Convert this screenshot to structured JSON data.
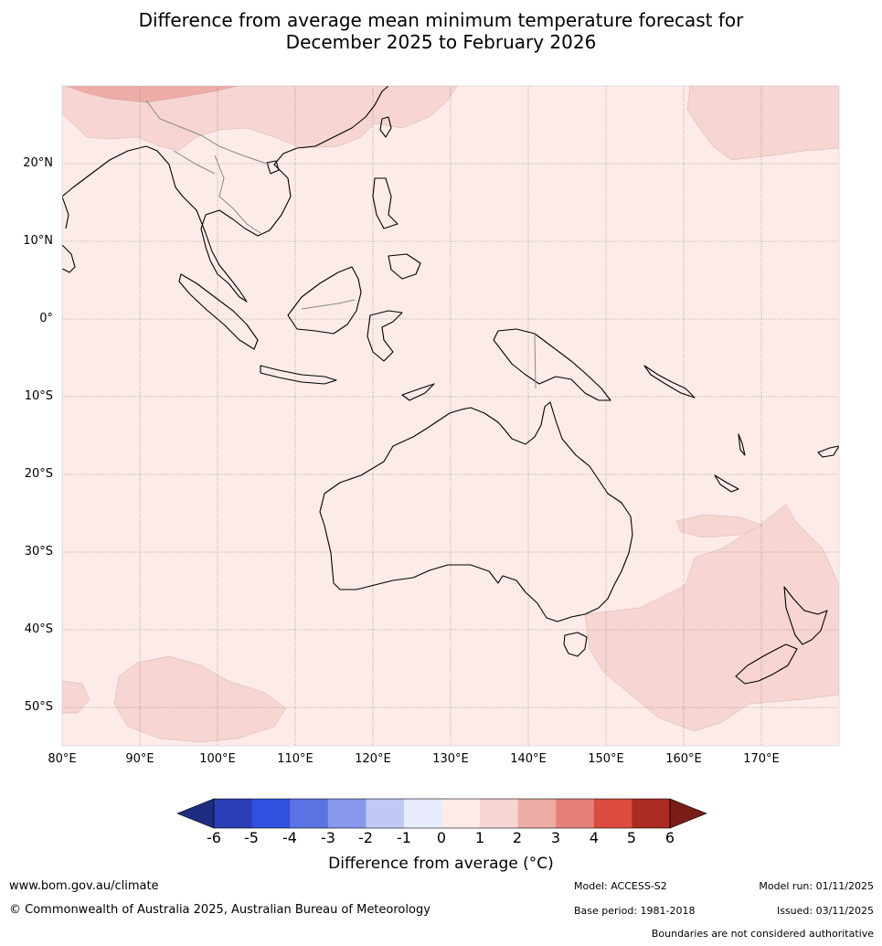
{
  "title": {
    "line1": "Difference from average mean minimum temperature forecast for",
    "line2": "December 2025 to February 2026"
  },
  "map": {
    "lon_range": [
      80,
      180
    ],
    "lat_range": [
      -55,
      30
    ],
    "lat_labels": [
      "20°N",
      "10°N",
      "0°",
      "10°S",
      "20°S",
      "30°S",
      "40°S",
      "50°S"
    ],
    "lon_labels": [
      "80°E",
      "90°E",
      "100°E",
      "110°E",
      "120°E",
      "130°E",
      "140°E",
      "150°E",
      "160°E",
      "170°E"
    ],
    "background_category": "0 to 1",
    "anomaly_regions": [
      "southern China 1 to 2",
      "China 2 to 3",
      "north Pacific 1 to 2",
      "Tasman Sea 1 to 2",
      "southern Indian Ocean 1 to 2"
    ]
  },
  "colorbar": {
    "ticks": [
      "-6",
      "-5",
      "-4",
      "-3",
      "-2",
      "-1",
      "0",
      "1",
      "2",
      "3",
      "4",
      "5",
      "6"
    ],
    "colors": [
      "#1f2d80",
      "#2a3fb5",
      "#3050e0",
      "#5b74e4",
      "#8898ec",
      "#c0c8f4",
      "#e8ebfb",
      "#fcebe9",
      "#f6d5d2",
      "#edaca6",
      "#e58079",
      "#db4c3f",
      "#ab2a22",
      "#7a1c18"
    ],
    "label": "Difference from average (°C)"
  },
  "footer": {
    "website": "www.bom.gov.au/climate",
    "copyright": "© Commonwealth of Australia 2025, Australian Bureau of Meteorology",
    "model": "Model: ACCESS-S2",
    "base_period": "Base period: 1981-2018",
    "model_run": "Model run: 01/11/2025",
    "issued": "Issued: 03/11/2025",
    "disclaimer": "Boundaries are not considered authoritative"
  }
}
